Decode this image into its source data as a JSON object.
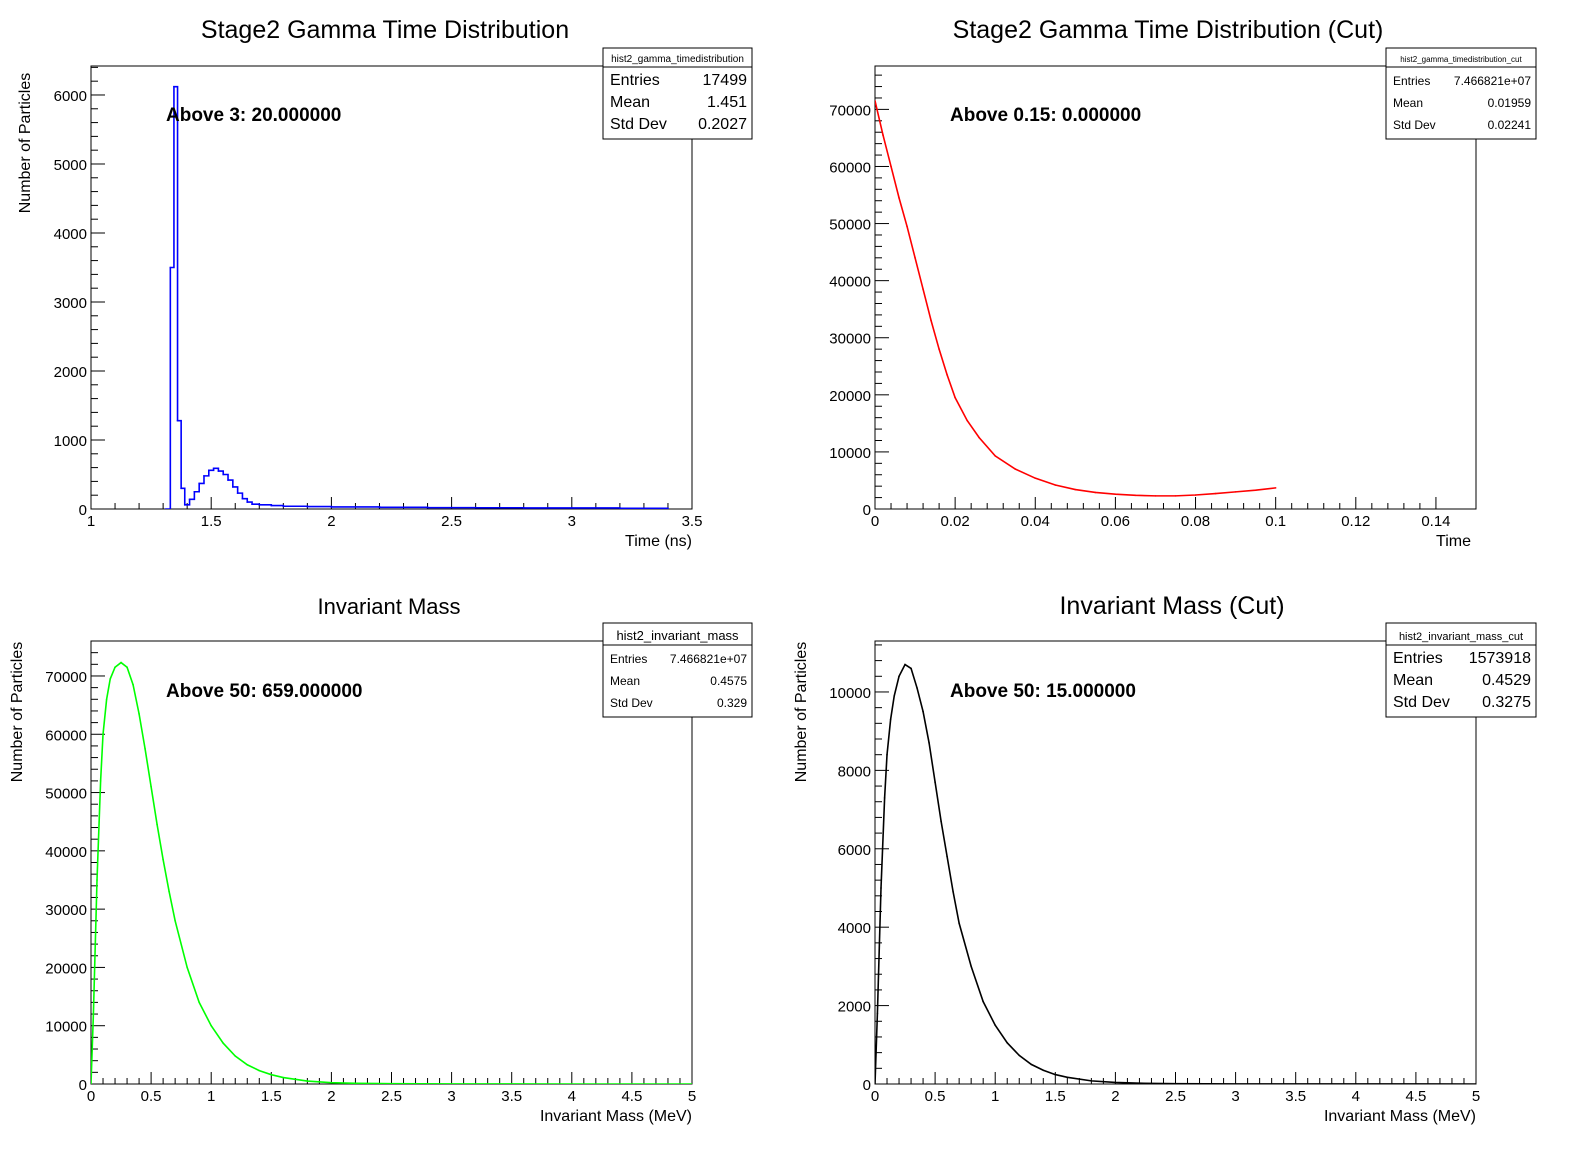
{
  "chart_data": [
    {
      "type": "line",
      "title": "Stage2 Gamma Time Distribution",
      "xlabel": "Time (ns)",
      "ylabel": "Number of Particles",
      "xlim": [
        1,
        3.5
      ],
      "ylim": [
        0,
        6420
      ],
      "xticks": [
        "1",
        "1.5",
        "2",
        "2.5",
        "3",
        "3.5"
      ],
      "yticks": [
        "0",
        "1000",
        "2000",
        "3000",
        "4000",
        "5000",
        "6000"
      ],
      "annotation": "Above 3: 20.000000",
      "stats": {
        "name": "hist2_gamma_timedistribution",
        "rows": [
          {
            "label": "Entries",
            "value": "17499"
          },
          {
            "label": "Mean",
            "value": "1.451"
          },
          {
            "label": "Std Dev",
            "value": "0.2027"
          }
        ]
      },
      "color": "#0000ff",
      "series": [
        {
          "x": [
            1.31,
            1.33,
            1.345,
            1.36,
            1.375,
            1.39,
            1.41,
            1.43,
            1.45,
            1.47,
            1.49,
            1.51,
            1.53,
            1.55,
            1.57,
            1.59,
            1.61,
            1.63,
            1.65,
            1.67,
            1.7,
            1.75,
            1.8,
            1.9,
            2.0,
            2.2,
            2.4,
            2.6,
            2.8,
            3.0,
            3.2,
            3.4
          ],
          "y": [
            0,
            3500,
            6120,
            1280,
            300,
            60,
            140,
            250,
            370,
            480,
            560,
            590,
            550,
            500,
            420,
            320,
            230,
            150,
            100,
            70,
            60,
            50,
            40,
            35,
            30,
            25,
            20,
            18,
            15,
            15,
            10,
            0
          ]
        }
      ]
    },
    {
      "type": "line",
      "title": "Stage2 Gamma Time Distribution (Cut)",
      "xlabel": "Time",
      "ylabel": "",
      "xlim": [
        0,
        0.15
      ],
      "ylim": [
        0,
        77600
      ],
      "xticks": [
        "0",
        "0.02",
        "0.04",
        "0.06",
        "0.08",
        "0.1",
        "0.12",
        "0.14"
      ],
      "yticks": [
        "0",
        "10000",
        "20000",
        "30000",
        "40000",
        "50000",
        "60000",
        "70000"
      ],
      "annotation": "Above 0.15: 0.000000",
      "stats": {
        "name": "hist2_gamma_timedistribution_cut",
        "rows": [
          {
            "label": "Entries",
            "value": "7.466821e+07"
          },
          {
            "label": "Mean",
            "value": "0.01959"
          },
          {
            "label": "Std Dev",
            "value": "0.02241"
          }
        ]
      },
      "color": "#ff0000",
      "series": [
        {
          "x": [
            0,
            0.002,
            0.004,
            0.006,
            0.008,
            0.01,
            0.012,
            0.014,
            0.016,
            0.018,
            0.02,
            0.023,
            0.026,
            0.03,
            0.035,
            0.04,
            0.045,
            0.05,
            0.055,
            0.06,
            0.065,
            0.07,
            0.075,
            0.08,
            0.085,
            0.09,
            0.095,
            0.1
          ],
          "y": [
            71500,
            65500,
            60000,
            54500,
            49500,
            44000,
            38500,
            33000,
            28000,
            23500,
            19500,
            15500,
            12500,
            9300,
            7000,
            5400,
            4200,
            3400,
            2900,
            2600,
            2400,
            2300,
            2300,
            2450,
            2700,
            3000,
            3300,
            3700
          ]
        }
      ]
    },
    {
      "type": "line",
      "title": "Invariant Mass",
      "xlabel": "Invariant Mass (MeV)",
      "ylabel": "Number of Particles",
      "xlim": [
        0,
        5
      ],
      "ylim": [
        0,
        76000
      ],
      "xticks": [
        "0",
        "0.5",
        "1",
        "1.5",
        "2",
        "2.5",
        "3",
        "3.5",
        "4",
        "4.5",
        "5"
      ],
      "yticks": [
        "0",
        "10000",
        "20000",
        "30000",
        "40000",
        "50000",
        "60000",
        "70000"
      ],
      "annotation": "Above 50: 659.000000",
      "stats": {
        "name": "hist2_invariant_mass",
        "rows": [
          {
            "label": "Entries",
            "value": "7.466821e+07"
          },
          {
            "label": "Mean",
            "value": "0.4575"
          },
          {
            "label": "Std Dev",
            "value": "0.329"
          }
        ]
      },
      "color": "#00ff00",
      "series": [
        {
          "x": [
            0,
            0.02,
            0.05,
            0.08,
            0.1,
            0.13,
            0.16,
            0.2,
            0.25,
            0.3,
            0.35,
            0.4,
            0.45,
            0.5,
            0.55,
            0.6,
            0.65,
            0.7,
            0.8,
            0.9,
            1.0,
            1.1,
            1.2,
            1.3,
            1.4,
            1.5,
            1.6,
            1.8,
            2.0,
            2.2,
            2.5,
            3.0,
            3.5,
            4.0,
            4.5,
            5.0
          ],
          "y": [
            0,
            12000,
            35000,
            52000,
            60000,
            66000,
            69500,
            71500,
            72300,
            71500,
            68500,
            63500,
            57500,
            51000,
            44500,
            38500,
            33000,
            28000,
            20000,
            14000,
            10000,
            7000,
            4800,
            3300,
            2300,
            1600,
            1100,
            500,
            230,
            120,
            50,
            15,
            5,
            2,
            1,
            0
          ]
        }
      ]
    },
    {
      "type": "line",
      "title": "Invariant Mass (Cut)",
      "xlabel": "Invariant Mass (MeV)",
      "ylabel": "Number of Particles",
      "xlim": [
        0,
        5
      ],
      "ylim": [
        0,
        11300
      ],
      "xticks": [
        "0",
        "0.5",
        "1",
        "1.5",
        "2",
        "2.5",
        "3",
        "3.5",
        "4",
        "4.5",
        "5"
      ],
      "yticks": [
        "0",
        "2000",
        "4000",
        "6000",
        "8000",
        "10000"
      ],
      "annotation": "Above 50: 15.000000",
      "stats": {
        "name": "hist2_invariant_mass_cut",
        "rows": [
          {
            "label": "Entries",
            "value": "1573918"
          },
          {
            "label": "Mean",
            "value": "0.4529"
          },
          {
            "label": "Std Dev",
            "value": "0.3275"
          }
        ]
      },
      "color": "#000000",
      "series": [
        {
          "x": [
            0,
            0.02,
            0.05,
            0.08,
            0.1,
            0.13,
            0.16,
            0.2,
            0.25,
            0.3,
            0.35,
            0.4,
            0.45,
            0.5,
            0.55,
            0.6,
            0.65,
            0.7,
            0.8,
            0.9,
            1.0,
            1.1,
            1.2,
            1.3,
            1.4,
            1.5,
            1.6,
            1.8,
            2.0,
            2.2,
            2.5,
            3.0,
            3.5,
            4.0,
            4.5,
            5.0
          ],
          "y": [
            0,
            1800,
            5000,
            7300,
            8400,
            9300,
            9900,
            10400,
            10700,
            10600,
            10100,
            9500,
            8700,
            7700,
            6700,
            5800,
            4900,
            4100,
            3000,
            2100,
            1500,
            1050,
            730,
            500,
            350,
            240,
            170,
            80,
            40,
            20,
            8,
            3,
            2,
            1,
            1,
            0
          ]
        }
      ]
    }
  ]
}
